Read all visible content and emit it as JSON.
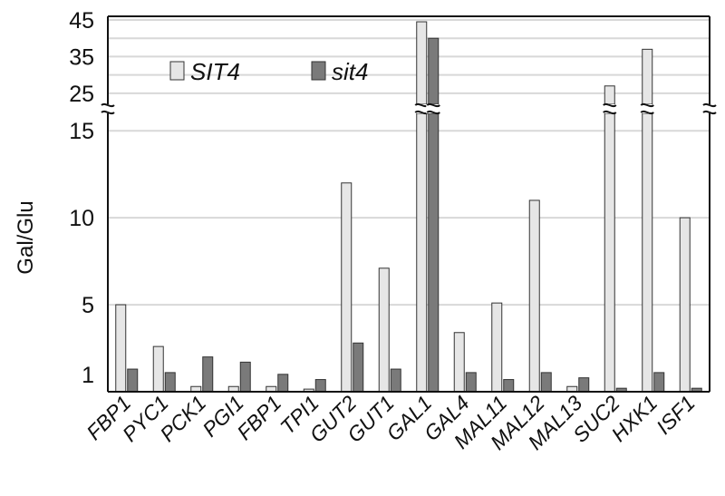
{
  "chart_data": {
    "type": "bar",
    "title": "",
    "xlabel": "",
    "ylabel": "Gal/Glu",
    "categories": [
      "FBP1",
      "PYC1",
      "PCK1",
      "PGI1",
      "FBP1",
      "TPI1",
      "GUT2",
      "GUT1",
      "GAL1",
      "GAL4",
      "MAL11",
      "MAL12",
      "MAL13",
      "SUC2",
      "HXK1",
      "ISF1"
    ],
    "series": [
      {
        "name": "SIT4",
        "color": "#e6e6e6",
        "values": [
          5,
          2.6,
          0.3,
          0.3,
          0.3,
          0.15,
          12,
          7.1,
          44.5,
          3.4,
          5.1,
          11,
          0.3,
          27,
          37,
          10
        ]
      },
      {
        "name": "sit4",
        "color": "#7a7a7a",
        "values": [
          1.3,
          1.1,
          2.0,
          1.7,
          1.0,
          0.7,
          2.8,
          1.3,
          40,
          1.1,
          0.7,
          1.1,
          0.8,
          0.2,
          1.1,
          0.2
        ]
      }
    ],
    "y_axis": {
      "broken": true,
      "lower_range": [
        0,
        16
      ],
      "upper_range": [
        22,
        45
      ],
      "lower_ticks": [
        1,
        5,
        10,
        15
      ],
      "upper_ticks": [
        25,
        35,
        45
      ],
      "tick_labels_lower": [
        "1",
        "5",
        "10",
        "15"
      ],
      "tick_labels_upper": [
        "25",
        "35",
        "45"
      ]
    },
    "grid": true,
    "legend": {
      "position": "top-left",
      "entries": [
        "SIT4",
        "sit4"
      ]
    }
  }
}
